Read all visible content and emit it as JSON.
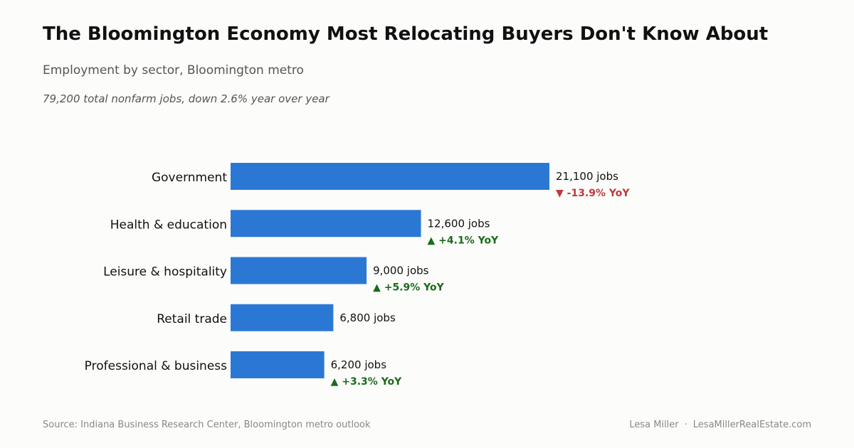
{
  "header": {
    "title": "The Bloomington Economy Most Relocating Buyers Don't Know About",
    "subtitle": "Employment by sector, Bloomington metro",
    "note": "79,200 total nonfarm jobs, down 2.6% year over year"
  },
  "footer": {
    "source": "Source: Indiana Business Research Center, Bloomington metro outlook",
    "author": "Lesa Miller",
    "separator": "·",
    "site": "LesaMillerRealEstate.com"
  },
  "chart_data": {
    "type": "bar",
    "orientation": "horizontal",
    "categories": [
      "Government",
      "Health & education",
      "Leisure & hospitality",
      "Retail trade",
      "Professional & business"
    ],
    "values": [
      21100,
      12600,
      9000,
      6800,
      6200
    ],
    "value_labels": [
      "21,100 jobs",
      "12,600 jobs",
      "9,000 jobs",
      "6,800 jobs",
      "6,200 jobs"
    ],
    "yoy_labels": [
      "▼ -13.9% YoY",
      "▲ +4.1% YoY",
      "▲ +5.9% YoY",
      "",
      "▲ +3.3% YoY"
    ],
    "yoy_direction": [
      "down",
      "up",
      "up",
      "none",
      "up"
    ],
    "xlim": [
      0,
      21100
    ],
    "grid": false,
    "colors": {
      "bar": "#2b78d4",
      "up": "#1a6b1a",
      "down": "#c0393b",
      "label": "#111111"
    }
  }
}
